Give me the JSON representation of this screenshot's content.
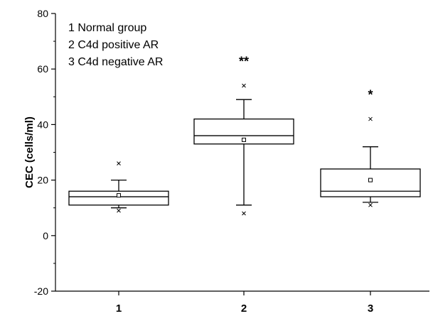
{
  "chart_data": {
    "type": "box",
    "title": "",
    "xlabel": "",
    "ylabel": "CEC (cells/ml)",
    "ylim": [
      -20,
      80
    ],
    "yticks": [
      -20,
      0,
      20,
      40,
      60,
      80
    ],
    "grid": false,
    "legend_placement": "top-left",
    "legend": [
      "1 Normal group",
      "2 C4d positive AR",
      "3 C4d negative AR"
    ],
    "categories": [
      "1",
      "2",
      "3"
    ],
    "boxes": [
      {
        "category": "1",
        "whisker_low": 10,
        "q1": 11,
        "median": 14,
        "q3": 16,
        "whisker_high": 20,
        "mean": 14.5,
        "outliers": [
          9,
          26
        ],
        "significance": ""
      },
      {
        "category": "2",
        "whisker_low": 11,
        "q1": 33,
        "median": 36,
        "q3": 42,
        "whisker_high": 49,
        "mean": 34.5,
        "outliers": [
          8,
          54
        ],
        "significance": "**"
      },
      {
        "category": "3",
        "whisker_low": 12,
        "q1": 14,
        "median": 16,
        "q3": 24,
        "whisker_high": 32,
        "mean": 20,
        "outliers": [
          11,
          42
        ],
        "significance": "*"
      }
    ]
  }
}
